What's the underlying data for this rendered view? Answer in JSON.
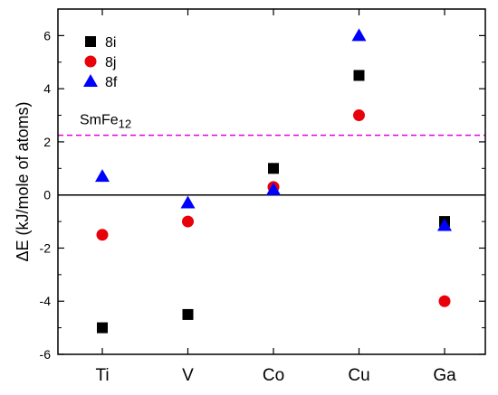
{
  "chart_data": {
    "type": "scatter",
    "categories": [
      "Ti",
      "V",
      "Co",
      "Cu",
      "Ga"
    ],
    "series": [
      {
        "name": "8i",
        "marker": "square",
        "color": "#000000",
        "values": [
          -5.0,
          -4.5,
          1.0,
          4.5,
          -1.0
        ]
      },
      {
        "name": "8j",
        "marker": "circle",
        "color": "#e8000b",
        "values": [
          -1.5,
          -1.0,
          0.3,
          3.0,
          -4.0
        ]
      },
      {
        "name": "8f",
        "marker": "triangle",
        "color": "#0000ff",
        "values": [
          0.7,
          -0.3,
          0.2,
          6.0,
          -1.15
        ]
      }
    ],
    "ylabel": "ΔE (kJ/mole of atoms)",
    "xlabel": "",
    "ylim": [
      -6,
      7
    ],
    "yticks": [
      -6,
      -4,
      -2,
      0,
      2,
      4,
      6
    ],
    "reference_line": {
      "label": "SmFe12",
      "label_base": "SmFe",
      "label_sub": "12",
      "value": 2.25,
      "color": "#dd00dd",
      "style": "dashed"
    },
    "zero_line": 0,
    "legend_position": "top-left",
    "grid": false
  }
}
